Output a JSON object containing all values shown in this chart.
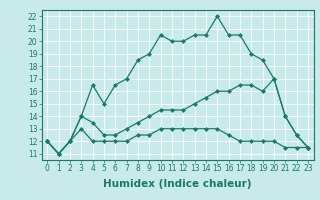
{
  "xlabel": "Humidex (Indice chaleur)",
  "x": [
    0,
    1,
    2,
    3,
    4,
    5,
    6,
    7,
    8,
    9,
    10,
    11,
    12,
    13,
    14,
    15,
    16,
    17,
    18,
    19,
    20,
    21,
    22,
    23
  ],
  "line1": [
    12,
    11,
    12,
    14,
    16.5,
    15,
    16.5,
    17,
    18.5,
    19,
    20.5,
    20,
    20,
    20.5,
    20.5,
    22,
    20.5,
    20.5,
    19,
    18.5,
    17,
    14,
    12.5,
    11.5
  ],
  "line2": [
    12,
    11,
    12,
    14,
    13.5,
    12.5,
    12.5,
    13,
    13.5,
    14,
    14.5,
    14.5,
    14.5,
    15,
    15.5,
    16,
    16,
    16.5,
    16.5,
    16,
    17,
    14,
    12.5,
    11.5
  ],
  "line3": [
    12,
    11,
    12,
    13,
    12,
    12,
    12,
    12,
    12.5,
    12.5,
    13,
    13,
    13,
    13,
    13,
    13,
    12.5,
    12,
    12,
    12,
    12,
    11.5,
    11.5,
    11.5
  ],
  "ylim": [
    10.5,
    22.5
  ],
  "xlim": [
    -0.5,
    23.5
  ],
  "yticks": [
    11,
    12,
    13,
    14,
    15,
    16,
    17,
    18,
    19,
    20,
    21,
    22
  ],
  "xticks": [
    0,
    1,
    2,
    3,
    4,
    5,
    6,
    7,
    8,
    9,
    10,
    11,
    12,
    13,
    14,
    15,
    16,
    17,
    18,
    19,
    20,
    21,
    22,
    23
  ],
  "line_color": "#1a7a6a",
  "bg_color": "#c8eaea",
  "grid_color": "#b0d8d8",
  "tick_label_fontsize": 5.5,
  "xlabel_fontsize": 7.5
}
